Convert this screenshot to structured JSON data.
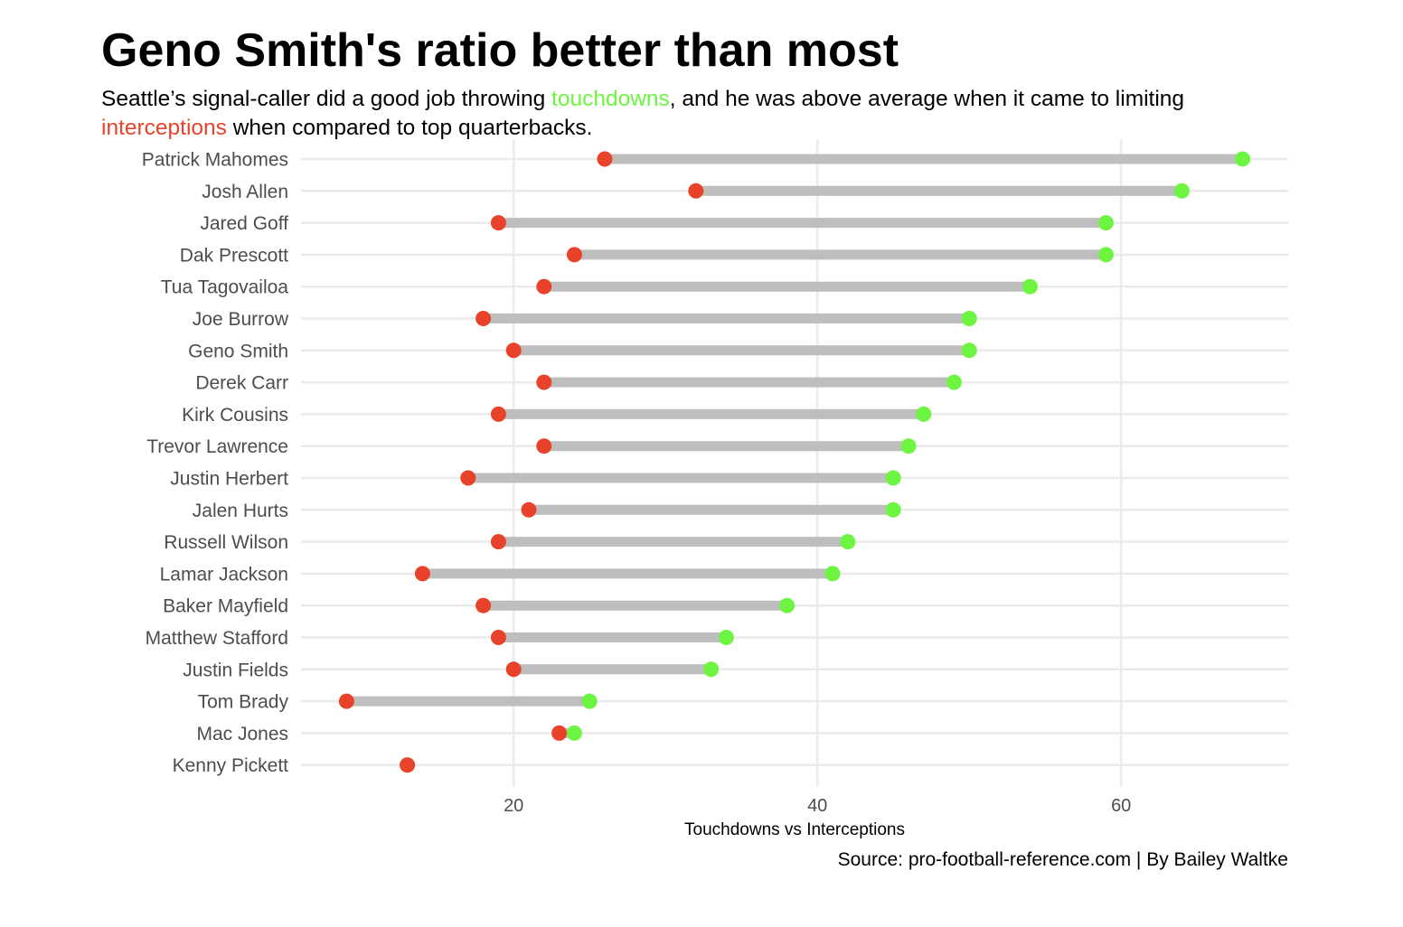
{
  "title": "Geno Smith's ratio better than most",
  "subtitle": {
    "part1": "Seattle’s signal-caller did a good job throwing ",
    "touchdowns_word": "touchdowns",
    "part2": ", and he was above average when it came to limiting ",
    "interceptions_word": "interceptions",
    "part3": " when compared to top quarterbacks."
  },
  "caption": "Source: pro-football-reference.com | By Bailey Waltke",
  "colors": {
    "touchdowns": "#6ef542",
    "interceptions": "#e8432a",
    "segment": "#bebebe",
    "grid": "#ebebeb"
  },
  "chart_data": {
    "type": "dumbbell",
    "xlabel": "Touchdowns vs Interceptions",
    "xlim": [
      6,
      71
    ],
    "xticks": [
      20,
      40,
      60
    ],
    "grid": true,
    "players": [
      "Patrick Mahomes",
      "Josh Allen",
      "Jared Goff",
      "Dak Prescott",
      "Tua Tagovailoa",
      "Joe Burrow",
      "Geno Smith",
      "Derek Carr",
      "Kirk Cousins",
      "Trevor Lawrence",
      "Justin Herbert",
      "Jalen Hurts",
      "Russell Wilson",
      "Lamar Jackson",
      "Baker Mayfield",
      "Matthew Stafford",
      "Justin Fields",
      "Tom Brady",
      "Mac Jones",
      "Kenny Pickett"
    ],
    "series": [
      {
        "name": "touchdowns",
        "values": [
          68,
          64,
          59,
          59,
          54,
          50,
          50,
          49,
          47,
          46,
          45,
          45,
          42,
          41,
          38,
          34,
          33,
          25,
          24,
          13
        ]
      },
      {
        "name": "interceptions",
        "values": [
          26,
          32,
          19,
          24,
          22,
          18,
          20,
          22,
          19,
          22,
          17,
          21,
          19,
          14,
          18,
          19,
          20,
          9,
          23,
          13
        ]
      }
    ]
  }
}
